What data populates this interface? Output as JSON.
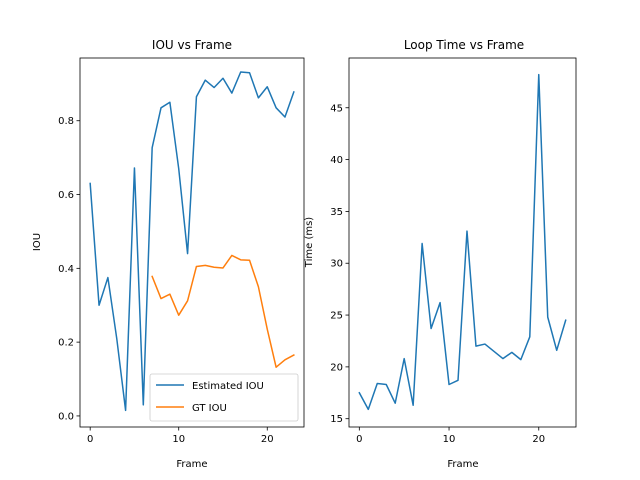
{
  "chart_data": [
    {
      "type": "line",
      "title": "IOU vs Frame",
      "xlabel": "Frame",
      "ylabel": "IOU",
      "xlim": [
        -1.15,
        24.15
      ],
      "ylim": [
        -0.03,
        0.97
      ],
      "xticks": [
        0,
        10,
        20
      ],
      "yticks": [
        0.0,
        0.2,
        0.4,
        0.6,
        0.8
      ],
      "ytick_format": 1,
      "legend": "lower-right",
      "grid": false,
      "series": [
        {
          "name": "Estimated IOU",
          "color": "#1f77b4",
          "x": [
            0,
            1,
            2,
            3,
            4,
            5,
            6,
            7,
            8,
            9,
            10,
            11,
            12,
            13,
            14,
            15,
            16,
            17,
            18,
            19,
            20,
            21,
            22,
            23
          ],
          "y": [
            0.63,
            0.3,
            0.375,
            0.21,
            0.015,
            0.672,
            0.03,
            0.727,
            0.835,
            0.85,
            0.67,
            0.44,
            0.865,
            0.91,
            0.89,
            0.915,
            0.875,
            0.932,
            0.93,
            0.862,
            0.892,
            0.835,
            0.81,
            0.878
          ]
        },
        {
          "name": "GT IOU",
          "color": "#ff7f0e",
          "x": [
            7,
            8,
            9,
            10,
            11,
            12,
            13,
            14,
            15,
            16,
            17,
            18,
            19,
            20,
            21,
            22,
            23
          ],
          "y": [
            0.378,
            0.318,
            0.33,
            0.273,
            0.312,
            0.405,
            0.408,
            0.403,
            0.401,
            0.435,
            0.423,
            0.422,
            0.35,
            0.235,
            0.132,
            0.152,
            0.165
          ]
        }
      ]
    },
    {
      "type": "line",
      "title": "Loop Time vs Frame",
      "xlabel": "Frame",
      "ylabel": "Time (ms)",
      "xlim": [
        -1.15,
        24.15
      ],
      "ylim": [
        14.2,
        49.8
      ],
      "xticks": [
        0,
        10,
        20
      ],
      "yticks": [
        15,
        20,
        25,
        30,
        35,
        40,
        45
      ],
      "ytick_format": 0,
      "grid": false,
      "series": [
        {
          "color": "#1f77b4",
          "x": [
            0,
            1,
            2,
            3,
            4,
            5,
            6,
            7,
            8,
            9,
            10,
            11,
            12,
            13,
            14,
            15,
            16,
            17,
            18,
            19,
            20,
            21,
            22,
            23
          ],
          "y": [
            17.5,
            15.9,
            18.4,
            18.3,
            16.5,
            20.8,
            16.3,
            31.9,
            23.7,
            26.2,
            18.3,
            18.7,
            33.1,
            22.0,
            22.2,
            21.5,
            20.8,
            21.4,
            20.7,
            22.9,
            48.2,
            24.8,
            21.6,
            24.5
          ]
        }
      ]
    }
  ]
}
